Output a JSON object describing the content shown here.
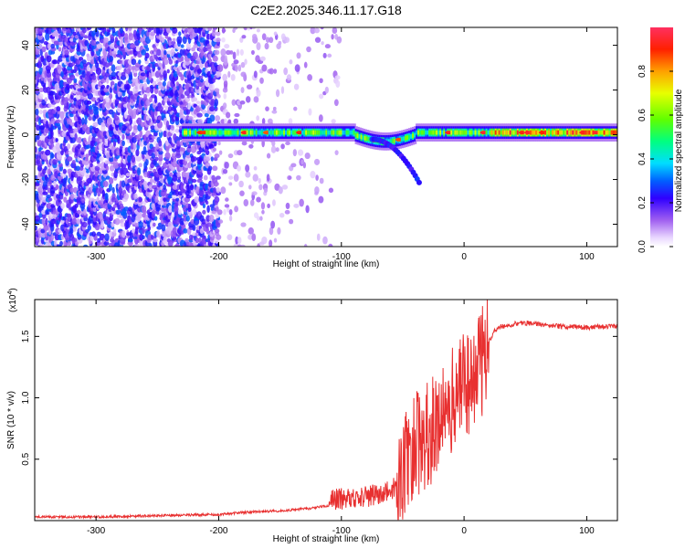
{
  "title": "C2E2.2025.346.11.17.G18",
  "chart_data": [
    {
      "type": "heatmap",
      "xlabel": "Height of straight line (km)",
      "ylabel": "Frequency (Hz)",
      "xlim": [
        -350,
        125
      ],
      "ylim": [
        -50,
        48
      ],
      "xticks": [
        -300,
        -200,
        -100,
        0,
        100
      ],
      "yticks": [
        -40,
        -20,
        0,
        20,
        40
      ],
      "xtick_labels": [
        "-300",
        "-200",
        "-100",
        "0",
        "100"
      ],
      "ytick_labels": [
        "-40",
        "-20",
        "0",
        "20",
        "40"
      ],
      "colorbar": {
        "label": "Normalized spectral amplitude",
        "range": [
          0,
          1
        ],
        "ticks": [
          0.0,
          0.2,
          0.4,
          0.6,
          0.8
        ],
        "tick_labels": [
          "0.0",
          "0.2",
          "0.4",
          "0.6",
          "0.8"
        ]
      },
      "features": {
        "noise_region_x": [
          -350,
          -200
        ],
        "sparse_region_x": [
          -200,
          -100
        ],
        "signal_band_x": [
          -230,
          125
        ],
        "signal_center_freq": 1,
        "signal_band_halfwidth": 4,
        "dip_segment": {
          "x": [
            -75,
            -35
          ],
          "freq": [
            -2,
            -23
          ]
        }
      }
    },
    {
      "type": "line",
      "xlabel": "Height of straight line (km)",
      "ylabel": "SNR (10 * v/v)",
      "scale_label": "(x10",
      "scale_exponent": "4",
      "xlim": [
        -350,
        125
      ],
      "ylim": [
        0.0,
        1.8
      ],
      "xticks": [
        -300,
        -200,
        -100,
        0,
        100
      ],
      "yticks": [
        0.5,
        1.0,
        1.5
      ],
      "xtick_labels": [
        "-300",
        "-200",
        "-100",
        "0",
        "100"
      ],
      "ytick_labels": [
        "0.5",
        "1.0",
        "1.5"
      ],
      "series": [
        {
          "name": "SNR",
          "color": "#e83030",
          "x": [
            -350,
            -300,
            -250,
            -200,
            -175,
            -150,
            -125,
            -100,
            -80,
            -60,
            -50,
            -45,
            -40,
            -35,
            -30,
            -25,
            -20,
            -15,
            -10,
            -5,
            0,
            5,
            10,
            15,
            20,
            25,
            30,
            40,
            50,
            60,
            70,
            80,
            90,
            100,
            110,
            125
          ],
          "y": [
            0.03,
            0.03,
            0.04,
            0.05,
            0.07,
            0.08,
            0.1,
            0.14,
            0.16,
            0.2,
            0.35,
            0.55,
            0.6,
            0.65,
            0.7,
            0.75,
            0.85,
            0.95,
            1.0,
            1.05,
            1.1,
            1.15,
            1.2,
            1.3,
            1.45,
            1.55,
            1.58,
            1.6,
            1.61,
            1.6,
            1.59,
            1.58,
            1.58,
            1.57,
            1.58,
            1.58
          ]
        }
      ]
    }
  ]
}
